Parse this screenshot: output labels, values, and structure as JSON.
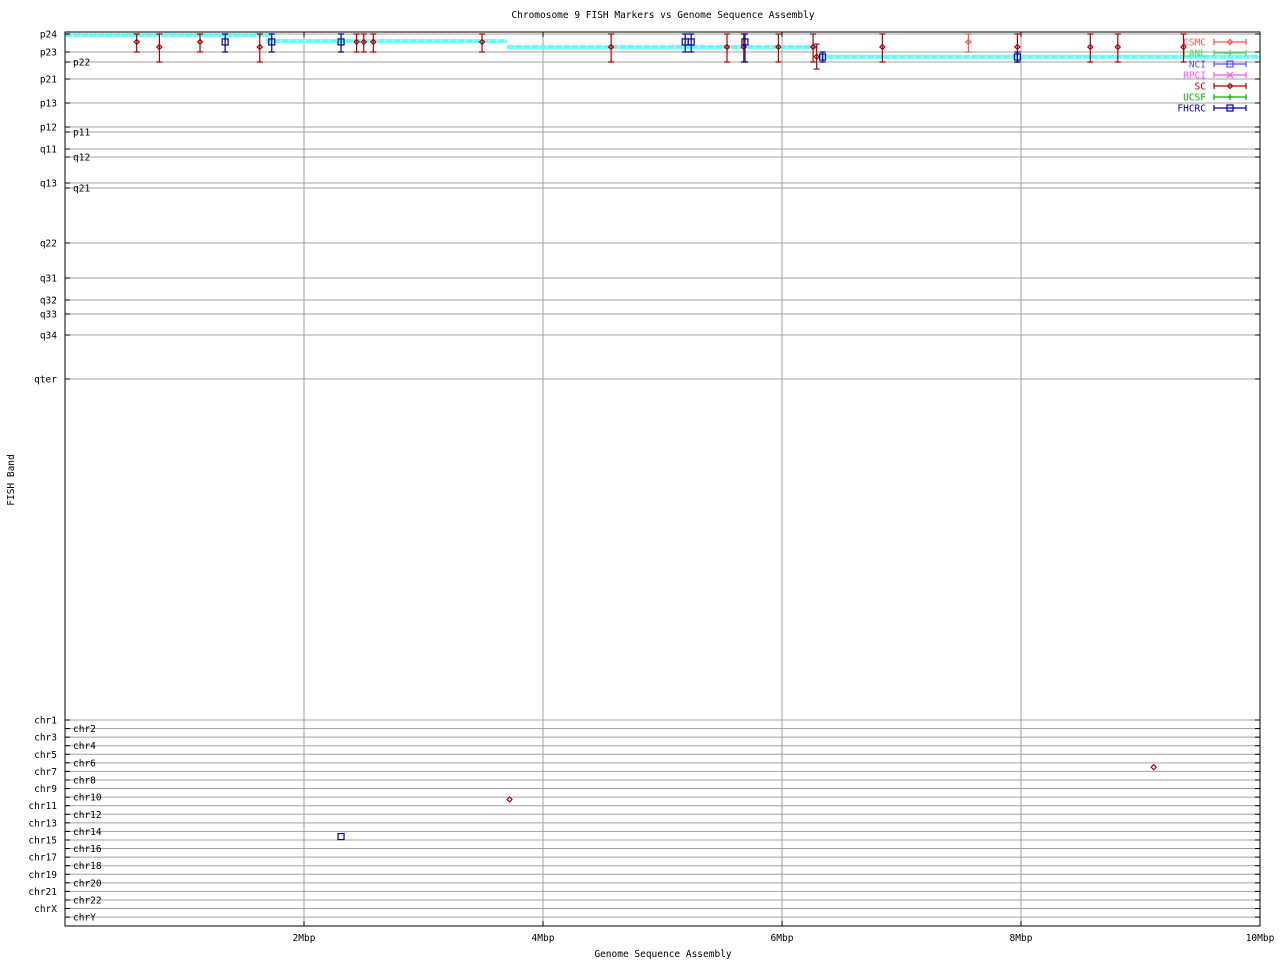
{
  "chart_data": {
    "type": "scatter",
    "title": "Chromosome 9 FISH Markers vs Genome Sequence Assembly",
    "xlabel": "Genome Sequence Assembly",
    "ylabel": "FISH Band",
    "xlim": [
      0,
      10
    ],
    "x_ticks": [
      {
        "value": 2,
        "label": "2Mbp"
      },
      {
        "value": 4,
        "label": "4Mbp"
      },
      {
        "value": 6,
        "label": "6Mbp"
      },
      {
        "value": 8,
        "label": "8Mbp"
      },
      {
        "value": 10,
        "label": "10Mbp"
      }
    ],
    "y_axis_kind": "categorical bands (y values are fractional band index, 0 = p24)",
    "y_ticks": [
      "p24",
      "p23",
      "p22",
      "p21",
      "p13",
      "p12",
      "p11",
      "q11",
      "q12",
      "q13",
      "q21",
      "q22",
      "q31",
      "q32",
      "q33",
      "q34",
      "qter",
      "chr1",
      "chr2",
      "chr3",
      "chr4",
      "chr5",
      "chr6",
      "chr7",
      "chr8",
      "chr9",
      "chr10",
      "chr11",
      "chr12",
      "chr13",
      "chr14",
      "chr15",
      "chr16",
      "chr17",
      "chr18",
      "chr19",
      "chr20",
      "chr21",
      "chr22",
      "chrX",
      "chrY"
    ],
    "grid": true,
    "legend_position": "top-right",
    "assembly_steps": {
      "color": "#60ffff",
      "segments": [
        {
          "x": [
            0,
            1.72
          ],
          "y": 0.05
        },
        {
          "x": [
            1.68,
            3.7
          ],
          "y": 0.39
        },
        {
          "x": [
            3.7,
            6.3
          ],
          "y": 0.72
        },
        {
          "x": [
            6.31,
            10
          ],
          "y": 1.47
        }
      ]
    },
    "series": [
      {
        "name": "CSMC",
        "color": "#ff5050",
        "marker": "diamond",
        "points": [
          {
            "x": 7.56,
            "y": 0.44,
            "ylow": 0,
            "yhigh": 1
          }
        ]
      },
      {
        "name": "LANL",
        "color": "#40e040",
        "marker": "plus",
        "points": []
      },
      {
        "name": "NCI",
        "color": "#5050ff",
        "marker": "box",
        "points": []
      },
      {
        "name": "RPCI",
        "color": "#ff50ff",
        "marker": "cross",
        "points": []
      },
      {
        "name": "SC",
        "color": "#b00000",
        "marker": "diamond",
        "points": [
          {
            "x": 0.6,
            "y": 0.44,
            "ylow": 0,
            "yhigh": 1
          },
          {
            "x": 0.79,
            "y": 0.72,
            "ylow": 0,
            "yhigh": 2
          },
          {
            "x": 1.13,
            "y": 0.44,
            "ylow": 0,
            "yhigh": 1
          },
          {
            "x": 1.63,
            "y": 0.72,
            "ylow": 0,
            "yhigh": 2
          },
          {
            "x": 2.44,
            "y": 0.44,
            "ylow": 0,
            "yhigh": 1
          },
          {
            "x": 2.5,
            "y": 0.44,
            "ylow": 0,
            "yhigh": 1
          },
          {
            "x": 2.58,
            "y": 0.44,
            "ylow": 0,
            "yhigh": 1
          },
          {
            "x": 3.49,
            "y": 0.44,
            "ylow": 0,
            "yhigh": 1
          },
          {
            "x": 4.57,
            "y": 0.72,
            "ylow": 0,
            "yhigh": 2
          },
          {
            "x": 5.54,
            "y": 0.72,
            "ylow": 0,
            "yhigh": 2
          },
          {
            "x": 5.68,
            "y": 0.72,
            "ylow": 0,
            "yhigh": 2
          },
          {
            "x": 5.97,
            "y": 0.72,
            "ylow": 0,
            "yhigh": 2
          },
          {
            "x": 6.26,
            "y": 0.72,
            "ylow": 0,
            "yhigh": 2
          },
          {
            "x": 6.29,
            "y": 1.47,
            "ylow": 0.56,
            "yhigh": 2.41
          },
          {
            "x": 6.84,
            "y": 0.72,
            "ylow": 0,
            "yhigh": 2
          },
          {
            "x": 7.97,
            "y": 0.72,
            "ylow": 0,
            "yhigh": 2
          },
          {
            "x": 8.58,
            "y": 0.72,
            "ylow": 0,
            "yhigh": 2
          },
          {
            "x": 8.81,
            "y": 0.72,
            "ylow": 0,
            "yhigh": 2
          },
          {
            "x": 9.36,
            "y": 0.72,
            "ylow": 0,
            "yhigh": 2
          },
          {
            "x": 3.72,
            "y": 26.27
          },
          {
            "x": 9.11,
            "y": 22.5
          }
        ]
      },
      {
        "name": "UCSF",
        "color": "#00b000",
        "marker": "plus",
        "points": []
      },
      {
        "name": "FHCRC",
        "color": "#0000a0",
        "marker": "box",
        "points": [
          {
            "x": 1.34,
            "y": 0.44,
            "ylow": 0,
            "yhigh": 1
          },
          {
            "x": 1.73,
            "y": 0.44,
            "ylow": 0,
            "yhigh": 1
          },
          {
            "x": 2.31,
            "y": 0.44,
            "ylow": 0,
            "yhigh": 1
          },
          {
            "x": 5.19,
            "y": 0.44,
            "ylow": 0,
            "yhigh": 1
          },
          {
            "x": 5.24,
            "y": 0.44,
            "ylow": 0,
            "yhigh": 1
          },
          {
            "x": 5.69,
            "y": 0.44,
            "ylow": 0,
            "yhigh": 2
          },
          {
            "x": 6.34,
            "y": 1.5,
            "ylow": 1,
            "yhigh": 2
          },
          {
            "x": 7.97,
            "y": 1.5,
            "ylow": 1,
            "yhigh": 2
          },
          {
            "x": 2.31,
            "y": 30.6
          }
        ]
      }
    ]
  }
}
